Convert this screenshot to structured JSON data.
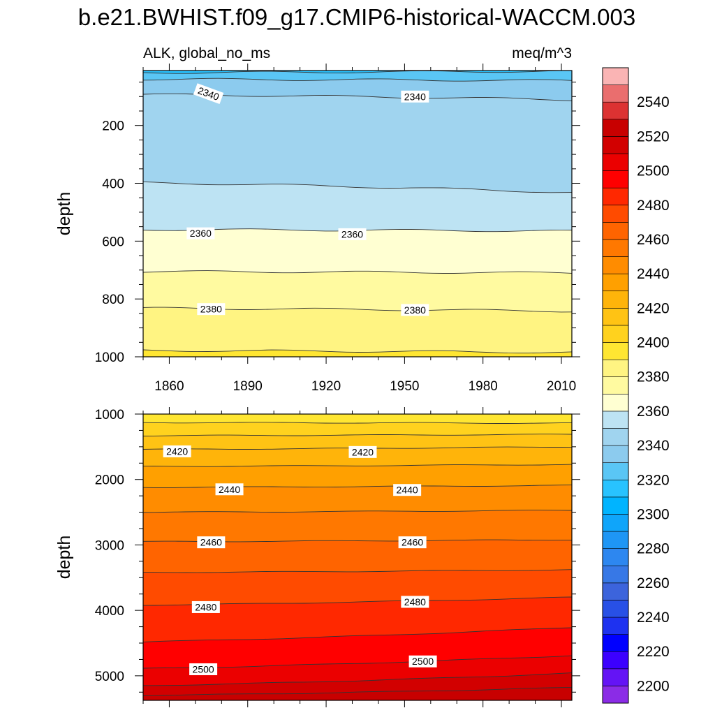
{
  "title": "b.e21.BWHIST.f09_g17.CMIP6-historical-WACCM.003",
  "left_string": "ALK, global_no_ms",
  "right_string": "meq/m^3",
  "colorbar": {
    "levels": [
      2200,
      2210,
      2220,
      2230,
      2240,
      2250,
      2260,
      2270,
      2280,
      2290,
      2300,
      2310,
      2320,
      2330,
      2340,
      2350,
      2360,
      2370,
      2380,
      2390,
      2400,
      2410,
      2420,
      2430,
      2440,
      2450,
      2460,
      2470,
      2480,
      2490,
      2500,
      2510,
      2520,
      2530,
      2540,
      2550
    ],
    "colors": [
      "#8b2ce6",
      "#6414f5",
      "#3c00ff",
      "#0000ff",
      "#1e32f0",
      "#2850e6",
      "#3c64dc",
      "#3778e6",
      "#2d87f0",
      "#1e96f5",
      "#0fa5fa",
      "#00b4ff",
      "#28c3ff",
      "#5ac6f5",
      "#8ccbee",
      "#a0d4ef",
      "#bde3f3",
      "#ffffd2",
      "#fffaa0",
      "#fff482",
      "#ffe632",
      "#ffd21e",
      "#ffc314",
      "#ffb40a",
      "#ffa000",
      "#ff8c00",
      "#ff7800",
      "#ff6400",
      "#ff4b00",
      "#ff2800",
      "#ff0000",
      "#eb0000",
      "#d20000",
      "#c80000",
      "#dc3232",
      "#ea6e6e",
      "#fab4b4"
    ],
    "tick_labels": [
      "2200",
      "2220",
      "2240",
      "2260",
      "2280",
      "2300",
      "2320",
      "2340",
      "2360",
      "2380",
      "2400",
      "2420",
      "2440",
      "2460",
      "2480",
      "2500",
      "2520",
      "2540"
    ]
  },
  "chart_data": [
    {
      "type": "heatmap",
      "name": "upper-panel",
      "x": [
        1850,
        2014
      ],
      "ylim": [
        10,
        1000
      ],
      "y_reversed": true,
      "xlabel": "",
      "ylabel": "depth",
      "xticks": [
        1860,
        1890,
        1920,
        1950,
        1980,
        2010
      ],
      "yticks": [
        200,
        400,
        600,
        800,
        1000
      ],
      "contours": [
        {
          "level": 2320,
          "start_depth": 17,
          "end_depth": 12
        },
        {
          "level": 2330,
          "start_depth": 40,
          "end_depth": 45
        },
        {
          "level": 2340,
          "start_depth": 93,
          "end_depth": 111
        },
        {
          "level": 2350,
          "start_depth": 398,
          "end_depth": 432
        },
        {
          "level": 2360,
          "start_depth": 560,
          "end_depth": 565
        },
        {
          "level": 2370,
          "start_depth": 705,
          "end_depth": 710
        },
        {
          "level": 2380,
          "start_depth": 832,
          "end_depth": 842
        },
        {
          "level": 2390,
          "start_depth": 978,
          "end_depth": 985
        }
      ],
      "contour_labels": [
        {
          "text": "2340",
          "year": 1875,
          "depth": 90
        },
        {
          "text": "2340",
          "year": 1954,
          "depth": 100
        },
        {
          "text": "2360",
          "year": 1872,
          "depth": 573
        },
        {
          "text": "2360",
          "year": 1930,
          "depth": 576
        },
        {
          "text": "2380",
          "year": 1876,
          "depth": 835
        },
        {
          "text": "2380",
          "year": 1954,
          "depth": 838
        }
      ]
    },
    {
      "type": "heatmap",
      "name": "lower-panel",
      "x": [
        1850,
        2014
      ],
      "ylim": [
        1000,
        5375
      ],
      "y_reversed": true,
      "xlabel": "",
      "ylabel": "depth",
      "xticks": [
        1860,
        1890,
        1920,
        1950,
        1980,
        2010
      ],
      "yticks": [
        1000,
        2000,
        3000,
        4000,
        5000
      ],
      "contours": [
        {
          "level": 2400,
          "start_depth": 1130,
          "end_depth": 1140
        },
        {
          "level": 2410,
          "start_depth": 1330,
          "end_depth": 1310
        },
        {
          "level": 2420,
          "start_depth": 1540,
          "end_depth": 1500
        },
        {
          "level": 2430,
          "start_depth": 1800,
          "end_depth": 1770
        },
        {
          "level": 2440,
          "start_depth": 2120,
          "end_depth": 2090
        },
        {
          "level": 2450,
          "start_depth": 2500,
          "end_depth": 2470
        },
        {
          "level": 2460,
          "start_depth": 2950,
          "end_depth": 2920
        },
        {
          "level": 2470,
          "start_depth": 3420,
          "end_depth": 3380
        },
        {
          "level": 2480,
          "start_depth": 3920,
          "end_depth": 3800
        },
        {
          "level": 2490,
          "start_depth": 4480,
          "end_depth": 4260
        },
        {
          "level": 2500,
          "start_depth": 4890,
          "end_depth": 4690
        },
        {
          "level": 2510,
          "start_depth": 5150,
          "end_depth": 4960
        },
        {
          "level": 2520,
          "start_depth": 5300,
          "end_depth": 5180
        }
      ],
      "contour_labels": [
        {
          "text": "2420",
          "year": 1863,
          "depth": 1570
        },
        {
          "text": "2420",
          "year": 1934,
          "depth": 1580
        },
        {
          "text": "2440",
          "year": 1883,
          "depth": 2150
        },
        {
          "text": "2440",
          "year": 1951,
          "depth": 2160
        },
        {
          "text": "2460",
          "year": 1876,
          "depth": 2960
        },
        {
          "text": "2460",
          "year": 1953,
          "depth": 2960
        },
        {
          "text": "2480",
          "year": 1874,
          "depth": 3950
        },
        {
          "text": "2480",
          "year": 1954,
          "depth": 3870
        },
        {
          "text": "2500",
          "year": 1873,
          "depth": 4900
        },
        {
          "text": "2500",
          "year": 1957,
          "depth": 4780
        }
      ]
    }
  ]
}
